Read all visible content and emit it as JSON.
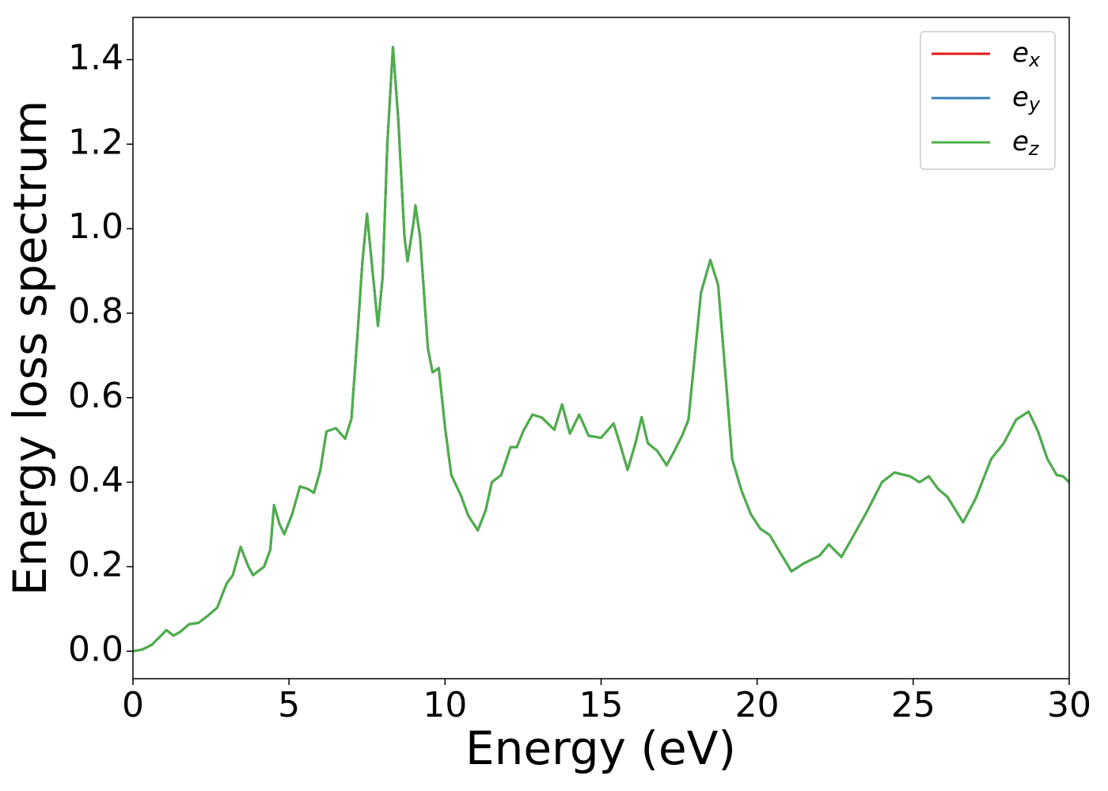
{
  "chart_data": {
    "type": "line",
    "xlabel": "Energy (eV)",
    "ylabel": "Energy loss spectrum",
    "x": [
      0,
      0.3,
      0.6,
      0.9,
      1.07,
      1.3,
      1.5,
      1.8,
      2.1,
      2.4,
      2.7,
      3.0,
      3.2,
      3.45,
      3.7,
      3.85,
      4.2,
      4.4,
      4.52,
      4.7,
      4.85,
      5.1,
      5.35,
      5.6,
      5.8,
      6.0,
      6.2,
      6.5,
      6.8,
      7.0,
      7.2,
      7.35,
      7.5,
      7.65,
      7.85,
      8.0,
      8.15,
      8.33,
      8.5,
      8.7,
      8.8,
      9.0,
      9.05,
      9.2,
      9.45,
      9.6,
      9.8,
      10.0,
      10.2,
      10.5,
      10.75,
      11.05,
      11.3,
      11.5,
      11.8,
      12.1,
      12.3,
      12.5,
      12.8,
      13.1,
      13.5,
      13.75,
      14.0,
      14.3,
      14.6,
      15.0,
      15.4,
      15.6,
      15.85,
      16.1,
      16.3,
      16.5,
      16.8,
      17.1,
      17.35,
      17.6,
      17.8,
      18.0,
      18.2,
      18.5,
      18.75,
      19.0,
      19.2,
      19.5,
      19.8,
      20.1,
      20.4,
      21.1,
      21.5,
      22.0,
      22.3,
      22.7,
      23.0,
      23.5,
      24.0,
      24.4,
      24.9,
      25.2,
      25.5,
      25.8,
      26.1,
      26.6,
      27.0,
      27.5,
      27.9,
      28.3,
      28.7,
      29.0,
      29.3,
      29.6,
      29.8,
      30.0
    ],
    "series": [
      {
        "name": "ex",
        "color": "#e41a1c",
        "values": [
          0,
          0.004,
          0.015,
          0.037,
          0.05,
          0.037,
          0.045,
          0.064,
          0.067,
          0.084,
          0.103,
          0.16,
          0.18,
          0.247,
          0.2,
          0.18,
          0.2,
          0.24,
          0.346,
          0.3,
          0.277,
          0.324,
          0.39,
          0.384,
          0.375,
          0.427,
          0.52,
          0.528,
          0.503,
          0.55,
          0.755,
          0.92,
          1.035,
          0.92,
          0.77,
          0.885,
          1.2,
          1.43,
          1.26,
          0.98,
          0.923,
          1.02,
          1.055,
          0.98,
          0.717,
          0.66,
          0.67,
          0.53,
          0.417,
          0.37,
          0.32,
          0.286,
          0.333,
          0.4,
          0.417,
          0.483,
          0.483,
          0.52,
          0.56,
          0.553,
          0.524,
          0.584,
          0.515,
          0.56,
          0.51,
          0.505,
          0.539,
          0.492,
          0.429,
          0.492,
          0.554,
          0.492,
          0.474,
          0.44,
          0.474,
          0.511,
          0.548,
          0.698,
          0.848,
          0.926,
          0.867,
          0.642,
          0.455,
          0.38,
          0.324,
          0.29,
          0.275,
          0.189,
          0.208,
          0.226,
          0.253,
          0.223,
          0.262,
          0.328,
          0.4,
          0.423,
          0.414,
          0.4,
          0.414,
          0.384,
          0.365,
          0.305,
          0.361,
          0.455,
          0.492,
          0.548,
          0.567,
          0.52,
          0.455,
          0.417,
          0.414,
          0.4
        ]
      },
      {
        "name": "ey",
        "color": "#377eb8",
        "values": [
          0,
          0.004,
          0.015,
          0.037,
          0.05,
          0.037,
          0.045,
          0.064,
          0.067,
          0.084,
          0.103,
          0.16,
          0.18,
          0.247,
          0.2,
          0.18,
          0.2,
          0.24,
          0.346,
          0.3,
          0.277,
          0.324,
          0.39,
          0.384,
          0.375,
          0.427,
          0.52,
          0.528,
          0.503,
          0.55,
          0.755,
          0.92,
          1.035,
          0.92,
          0.77,
          0.885,
          1.2,
          1.43,
          1.26,
          0.98,
          0.923,
          1.02,
          1.055,
          0.98,
          0.717,
          0.66,
          0.67,
          0.53,
          0.417,
          0.37,
          0.32,
          0.286,
          0.333,
          0.4,
          0.417,
          0.483,
          0.483,
          0.52,
          0.56,
          0.553,
          0.524,
          0.584,
          0.515,
          0.56,
          0.51,
          0.505,
          0.539,
          0.492,
          0.429,
          0.492,
          0.554,
          0.492,
          0.474,
          0.44,
          0.474,
          0.511,
          0.548,
          0.698,
          0.848,
          0.926,
          0.867,
          0.642,
          0.455,
          0.38,
          0.324,
          0.29,
          0.275,
          0.189,
          0.208,
          0.226,
          0.253,
          0.223,
          0.262,
          0.328,
          0.4,
          0.423,
          0.414,
          0.4,
          0.414,
          0.384,
          0.365,
          0.305,
          0.361,
          0.455,
          0.492,
          0.548,
          0.567,
          0.52,
          0.455,
          0.417,
          0.414,
          0.4
        ]
      },
      {
        "name": "ez",
        "color": "#4daf4a",
        "values": [
          0,
          0.004,
          0.015,
          0.037,
          0.05,
          0.037,
          0.045,
          0.064,
          0.067,
          0.084,
          0.103,
          0.16,
          0.18,
          0.247,
          0.2,
          0.18,
          0.2,
          0.24,
          0.346,
          0.3,
          0.277,
          0.324,
          0.39,
          0.384,
          0.375,
          0.427,
          0.52,
          0.528,
          0.503,
          0.55,
          0.755,
          0.92,
          1.035,
          0.92,
          0.77,
          0.885,
          1.2,
          1.43,
          1.26,
          0.98,
          0.923,
          1.02,
          1.055,
          0.98,
          0.717,
          0.66,
          0.67,
          0.53,
          0.417,
          0.37,
          0.32,
          0.286,
          0.333,
          0.4,
          0.417,
          0.483,
          0.483,
          0.52,
          0.56,
          0.553,
          0.524,
          0.584,
          0.515,
          0.56,
          0.51,
          0.505,
          0.539,
          0.492,
          0.429,
          0.492,
          0.554,
          0.492,
          0.474,
          0.44,
          0.474,
          0.511,
          0.548,
          0.698,
          0.848,
          0.926,
          0.867,
          0.642,
          0.455,
          0.38,
          0.324,
          0.29,
          0.275,
          0.189,
          0.208,
          0.226,
          0.253,
          0.223,
          0.262,
          0.328,
          0.4,
          0.423,
          0.414,
          0.4,
          0.414,
          0.384,
          0.365,
          0.305,
          0.361,
          0.455,
          0.492,
          0.548,
          0.567,
          0.52,
          0.455,
          0.417,
          0.414,
          0.4
        ]
      }
    ],
    "xlim": [
      0,
      30
    ],
    "xticks": [
      0,
      5,
      10,
      15,
      20,
      25,
      30
    ],
    "ylim": [
      -0.065,
      1.5
    ],
    "yticks": [
      {
        "value": 0,
        "label": "0.0"
      },
      0.2,
      0.4,
      0.6,
      0.8,
      {
        "value": 1,
        "label": "1.0"
      },
      1.2,
      1.4
    ],
    "grid": false,
    "legend": "upper right"
  }
}
